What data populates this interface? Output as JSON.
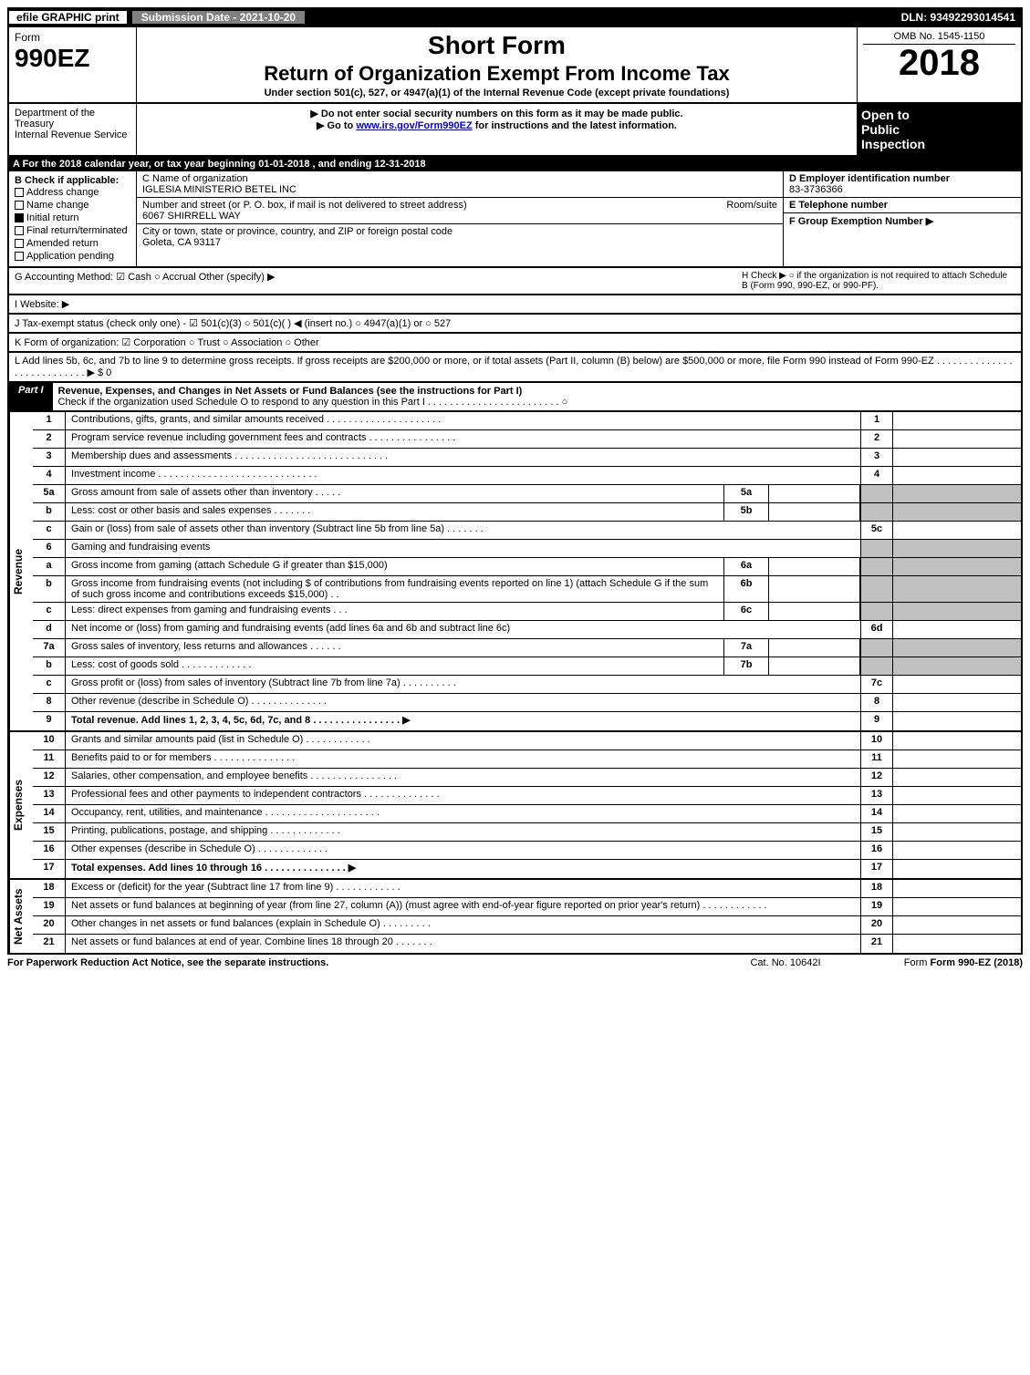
{
  "top_bar": {
    "efile": "efile GRAPHIC print",
    "submission": "Submission Date - 2021-10-20",
    "dln": "DLN: 93492293014541"
  },
  "header": {
    "form_label": "Form",
    "form_number": "990EZ",
    "short_form": "Short Form",
    "title": "Return of Organization Exempt From Income Tax",
    "subtitle": "Under section 501(c), 527, or 4947(a)(1) of the Internal Revenue Code (except private foundations)",
    "warn1": "▶ Do not enter social security numbers on this form as it may be made public.",
    "warn2_pre": "▶ Go to ",
    "warn2_link": "www.irs.gov/Form990EZ",
    "warn2_post": " for instructions and the latest information.",
    "omb": "OMB No. 1545-1150",
    "year": "2018",
    "open1": "Open to",
    "open2": "Public",
    "open3": "Inspection",
    "dept1": "Department of the Treasury",
    "dept2": "Internal Revenue Service"
  },
  "line_a": "A For the 2018 calendar year, or tax year beginning 01-01-2018               , and ending 12-31-2018",
  "section_b": {
    "label": "B  Check if applicable:",
    "items": [
      "Address change",
      "Name change",
      "Initial return",
      "Final return/terminated",
      "Amended return",
      "Application pending"
    ]
  },
  "section_c": {
    "c_label": "C Name of organization",
    "c_value": "IGLESIA MINISTERIO BETEL INC",
    "addr_label": "Number and street (or P. O. box, if mail is not delivered to street address)",
    "addr_room": "Room/suite",
    "addr_value": "6067 SHIRRELL WAY",
    "city_label": "City or town, state or province, country, and ZIP or foreign postal code",
    "city_value": "Goleta, CA  93117"
  },
  "section_d": {
    "d_label": "D Employer identification number",
    "d_value": "83-3736366",
    "e_label": "E Telephone number",
    "f_label": "F Group Exemption Number   ▶"
  },
  "line_g": "G Accounting Method:   ☑ Cash  ○ Accrual   Other (specify) ▶",
  "line_h": "H  Check ▶  ○  if the organization is not required to attach Schedule B (Form 990, 990-EZ, or 990-PF).",
  "line_i": "I Website: ▶",
  "line_j": "J Tax-exempt status (check only one) - ☑ 501(c)(3) ○ 501(c)(  ) ◀ (insert no.) ○ 4947(a)(1) or ○ 527",
  "line_k": "K Form of organization:  ☑ Corporation  ○ Trust  ○ Association  ○ Other",
  "line_l": "L Add lines 5b, 6c, and 7b to line 9 to determine gross receipts. If gross receipts are $200,000 or more, or if total assets (Part II, column (B) below) are $500,000 or more, file Form 990 instead of Form 990-EZ  . . . . . . . . . . . . . . . . . . . . . . . . . . .  ▶ $ 0",
  "part1": {
    "label": "Part I",
    "title": "Revenue, Expenses, and Changes in Net Assets or Fund Balances (see the instructions for Part I)",
    "check": "Check if the organization used Schedule O to respond to any question in this Part I . . . . . . . . . . . . . . . . . . . . . . . .  ○"
  },
  "sections": {
    "revenue": "Revenue",
    "expenses": "Expenses",
    "netassets": "Net Assets"
  },
  "rows": [
    {
      "n": "1",
      "d": "Contributions, gifts, grants, and similar amounts received . . . . . . . . . . . . . . . . . . . . .",
      "rn": "1"
    },
    {
      "n": "2",
      "d": "Program service revenue including government fees and contracts . . . . . . . . . . . . . . . .",
      "rn": "2"
    },
    {
      "n": "3",
      "d": "Membership dues and assessments . . . . . . . . . . . . . . . . . . . . . . . . . . . .",
      "rn": "3"
    },
    {
      "n": "4",
      "d": "Investment income . . . . . . . . . . . . . . . . . . . . . . . . . . . . .",
      "rn": "4"
    },
    {
      "n": "5a",
      "d": "Gross amount from sale of assets other than inventory . . . . .",
      "mb": "5a",
      "shade": true
    },
    {
      "n": "b",
      "d": "Less: cost or other basis and sales expenses . . . . . . .",
      "mb": "5b",
      "shade": true
    },
    {
      "n": "c",
      "d": "Gain or (loss) from sale of assets other than inventory (Subtract line 5b from line 5a) . . . . . . .",
      "rn": "5c"
    },
    {
      "n": "6",
      "d": "Gaming and fundraising events",
      "shade": true
    },
    {
      "n": "a",
      "d": "Gross income from gaming (attach Schedule G if greater than $15,000)",
      "mb": "6a",
      "shade": true
    },
    {
      "n": "b",
      "d": "Gross income from fundraising events (not including $                    of contributions from fundraising events reported on line 1) (attach Schedule G if the sum of such gross income and contributions exceeds $15,000)   . .",
      "mb": "6b",
      "shade": true
    },
    {
      "n": "c",
      "d": "Less: direct expenses from gaming and fundraising events    . . .",
      "mb": "6c",
      "shade": true
    },
    {
      "n": "d",
      "d": "Net income or (loss) from gaming and fundraising events (add lines 6a and 6b and subtract line 6c)",
      "rn": "6d"
    },
    {
      "n": "7a",
      "d": "Gross sales of inventory, less returns and allowances . . . . . .",
      "mb": "7a",
      "shade": true
    },
    {
      "n": "b",
      "d": "Less: cost of goods sold           . . . . . . . . . . . . .",
      "mb": "7b",
      "shade": true
    },
    {
      "n": "c",
      "d": "Gross profit or (loss) from sales of inventory (Subtract line 7b from line 7a) . . . . . . . . . .",
      "rn": "7c"
    },
    {
      "n": "8",
      "d": "Other revenue (describe in Schedule O)                  . . . . . . . . . . . . . .",
      "rn": "8"
    },
    {
      "n": "9",
      "d": "Total revenue. Add lines 1, 2, 3, 4, 5c, 6d, 7c, and 8  . . . . . . . . . . . . . . . .   ▶",
      "rn": "9",
      "bold": true
    }
  ],
  "exp_rows": [
    {
      "n": "10",
      "d": "Grants and similar amounts paid (list in Schedule O)         . . . . . . . . . . . .",
      "rn": "10"
    },
    {
      "n": "11",
      "d": "Benefits paid to or for members             . . . . . . . . . . . . . . .",
      "rn": "11"
    },
    {
      "n": "12",
      "d": "Salaries, other compensation, and employee benefits . . . . . . . . . . . . . . . .",
      "rn": "12"
    },
    {
      "n": "13",
      "d": "Professional fees and other payments to independent contractors . . . . . . . . . . . . . .",
      "rn": "13"
    },
    {
      "n": "14",
      "d": "Occupancy, rent, utilities, and maintenance . . . . . . . . . . . . . . . . . . . . .",
      "rn": "14"
    },
    {
      "n": "15",
      "d": "Printing, publications, postage, and shipping          . . . . . . . . . . . . .",
      "rn": "15"
    },
    {
      "n": "16",
      "d": "Other expenses (describe in Schedule O)           . . . . . . . . . . . . .",
      "rn": "16"
    },
    {
      "n": "17",
      "d": "Total expenses. Add lines 10 through 16         . . . . . . . . . . . . . . .   ▶",
      "rn": "17",
      "bold": true
    }
  ],
  "net_rows": [
    {
      "n": "18",
      "d": "Excess or (deficit) for the year (Subtract line 17 from line 9)        . . . . . . . . . . . .",
      "rn": "18"
    },
    {
      "n": "19",
      "d": "Net assets or fund balances at beginning of year (from line 27, column (A)) (must agree with end-of-year figure reported on prior year's return)          . . . . . . . . . . . .",
      "rn": "19"
    },
    {
      "n": "20",
      "d": "Other changes in net assets or fund balances (explain in Schedule O)    . . . . . . . . .",
      "rn": "20"
    },
    {
      "n": "21",
      "d": "Net assets or fund balances at end of year. Combine lines 18 through 20        . . . . . . .",
      "rn": "21"
    }
  ],
  "footer": {
    "left": "For Paperwork Reduction Act Notice, see the separate instructions.",
    "mid": "Cat. No. 10642I",
    "right": "Form 990-EZ (2018)"
  },
  "colors": {
    "black": "#000000",
    "white": "#ffffff",
    "gray_header": "#808080",
    "shade": "#c0c0c0",
    "link": "#0000ee"
  },
  "typography": {
    "base_fontsize": 12,
    "title_fontsize": 22,
    "year_fontsize": 40,
    "form_number_fontsize": 28
  }
}
